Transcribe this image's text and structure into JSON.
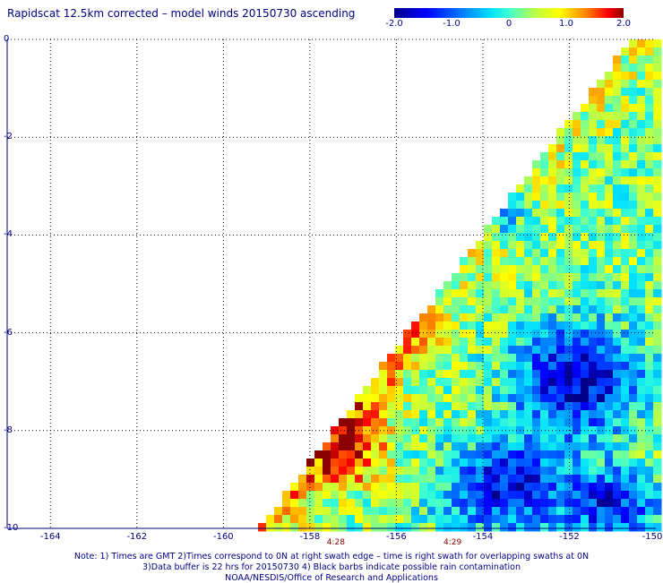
{
  "title": "Rapidscat 12.5km corrected – model winds 20150730 ascending",
  "colorbar": {
    "labels": [
      "-2.0",
      "-1.0",
      "0",
      "1.0",
      "2.0"
    ],
    "values": [
      -2.0,
      -1.0,
      0,
      1.0,
      2.0
    ],
    "range": [
      -2.0,
      2.0
    ]
  },
  "axes": {
    "y_ticks": [
      "0",
      "-2",
      "-4",
      "-6",
      "-8",
      "-10"
    ],
    "y_values": [
      0,
      -2,
      -4,
      -6,
      -8,
      -10
    ],
    "x_ticks": [
      "-164",
      "-162",
      "-160",
      "-158",
      "-156",
      "-154",
      "-152",
      "-150"
    ],
    "x_values": [
      -164,
      -162,
      -160,
      -158,
      -156,
      -154,
      -152,
      -150
    ],
    "lon_range": [
      -165,
      -150
    ],
    "lat_range": [
      -10,
      0
    ],
    "grid": "dotted"
  },
  "time_labels": [
    {
      "text": "4:28",
      "lon": -157.4
    },
    {
      "text": "4:29",
      "lon": -154.7
    }
  ],
  "notes": [
    "Note: 1) Times are GMT 2)Times correspond to 0N at right swath edge – time is right swath for overlapping swaths at 0N",
    "3)Data buffer is 22 hrs for 20150730 4) Black barbs indicate possible rain contamination",
    "NOAA/NESDIS/Office of Research and Applications"
  ],
  "colors": {
    "text": "#000080",
    "time": "#8b0000",
    "grid": "#000000"
  }
}
